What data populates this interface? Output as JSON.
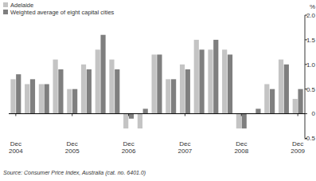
{
  "chart_data": {
    "type": "bar",
    "ylabel": "%",
    "source": "Source: Consumer Price Index, Australia (cat. no. 6401.0)",
    "categories": [
      "Dec 2004",
      null,
      null,
      null,
      "Dec 2005",
      null,
      null,
      null,
      "Dec 2006",
      null,
      null,
      null,
      "Dec 2007",
      null,
      null,
      null,
      "Dec 2008",
      null,
      null,
      null,
      "Dec 2009"
    ],
    "series": [
      {
        "name": "Adelaide",
        "color": "#c4c4c4",
        "values": [
          0.7,
          0.6,
          0.6,
          1.1,
          0.5,
          1.0,
          1.3,
          1.1,
          -0.3,
          -0.3,
          1.2,
          0.7,
          1.0,
          1.5,
          1.3,
          1.3,
          -0.3,
          0.0,
          0.6,
          1.1,
          0.3
        ]
      },
      {
        "name": "Weighted average of eight capital cities",
        "color": "#7f7f7f",
        "values": [
          0.8,
          0.7,
          0.6,
          0.9,
          0.5,
          0.9,
          1.6,
          0.9,
          -0.1,
          0.1,
          1.2,
          0.7,
          0.9,
          1.3,
          1.5,
          1.2,
          -0.3,
          0.1,
          0.5,
          1.0,
          0.5
        ]
      }
    ],
    "ylim": [
      -0.5,
      2.0
    ],
    "yticks": [
      {
        "value": 2.0,
        "label": "2.0"
      },
      1.5,
      {
        "value": 1.0,
        "label": "1.0"
      },
      0.5,
      0,
      -0.5
    ],
    "legend": "top-left",
    "grid": false
  }
}
